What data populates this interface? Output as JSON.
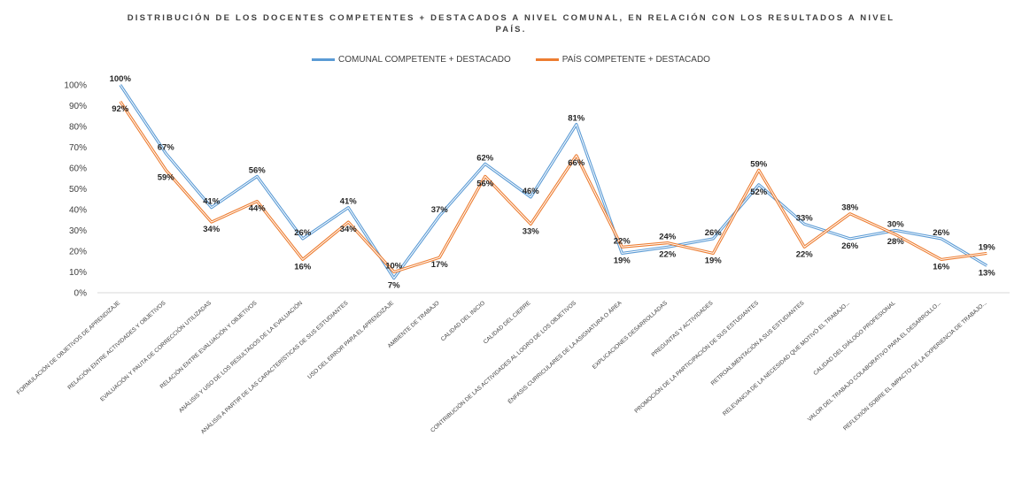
{
  "chart_data": {
    "type": "line",
    "title": "DISTRIBUCIÓN DE LOS DOCENTES COMPETENTES + DESTACADOS A NIVEL COMUNAL, EN RELACIÓN CON LOS RESULTADOS A NIVEL",
    "title_line2": "PAÍS.",
    "xlabel": "",
    "ylabel": "",
    "ylim": [
      0,
      100
    ],
    "ytick_labels": [
      "0%",
      "10%",
      "20%",
      "30%",
      "40%",
      "50%",
      "60%",
      "70%",
      "80%",
      "90%",
      "100%"
    ],
    "grid": false,
    "legend_position": "top-center",
    "categories": [
      "FORMULACIÓN DE OBJETIVOS DE APRENDIZAJE",
      "RELACIÓN ENTRE ACTIVIDADES Y OBJETIVOS",
      "EVALUACIÓN Y PAUTA DE CORRECCIÓN UTILIZADAS",
      "RELACIÓN ENTRE EVALUACIÓN Y OBJETIVOS",
      "ANÁLISIS Y USO DE LOS RESULTADOS DE LA EVALUACIÓN",
      "ANÁLISIS A PARTIR DE LAS CARACTERÍSTICAS DE SUS ESTUDIANTES",
      "USO DEL ERROR PARA EL APRENDIZAJE",
      "AMBIENTE DE TRABAJO",
      "CALIDAD DEL INICIO",
      "CALIDAD DEL CIERRE",
      "CONTRIBUCIÓN DE LAS ACTIVIDADES AL LOGRO DE LOS OBJETIVOS",
      "ÉNFASIS CURRICULARES DE LA ASIGNATURA O ÁREA",
      "EXPLICACIONES DESARROLLADAS",
      "PREGUNTAS Y ACTIVIDADES",
      "PROMOCIÓN DE LA PARTICIPACIÓN DE SUS ESTUDIANTES",
      "RETROALIMENTACIÓN A SUS ESTUDIANTES",
      "RELEVANCIA DE LA NECESIDAD QUE MOTIVÓ EL TRABAJO...",
      "CALIDAD DEL DIÁLOGO PROFESIONAL",
      "VALOR DEL TRABAJO COLABORATIVO PARA EL DESARROLLO...",
      "REFLEXIÓN SOBRE EL IMPACTO DE LA EXPERIENCIA DE TRABAJO..."
    ],
    "series": [
      {
        "name": "COMUNAL COMPETENTE + DESTACADO",
        "color": "#5b9bd5",
        "values": [
          100,
          67,
          41,
          56,
          26,
          41,
          7,
          37,
          62,
          46,
          81,
          19,
          22,
          26,
          52,
          33,
          26,
          30,
          26,
          13
        ],
        "labels": [
          "100%",
          "67%",
          "41%",
          "56%",
          "26%",
          "41%",
          "7%",
          "37%",
          "62%",
          "46%",
          "81%",
          "19%",
          "22%",
          "26%",
          "52%",
          "33%",
          "26%",
          "30%",
          "26%",
          "13%"
        ]
      },
      {
        "name": "PAÍS COMPETENTE + DESTACADO",
        "color": "#ed7d31",
        "values": [
          92,
          59,
          34,
          44,
          16,
          34,
          10,
          17,
          56,
          33,
          66,
          22,
          24,
          19,
          59,
          22,
          38,
          28,
          16,
          19
        ],
        "labels": [
          "92%",
          "59%",
          "34%",
          "44%",
          "16%",
          "34%",
          "10%",
          "17%",
          "56%",
          "33%",
          "66%",
          "22%",
          "24%",
          "19%",
          "59%",
          "22%",
          "38%",
          "28%",
          "16%",
          "19%"
        ]
      }
    ]
  }
}
